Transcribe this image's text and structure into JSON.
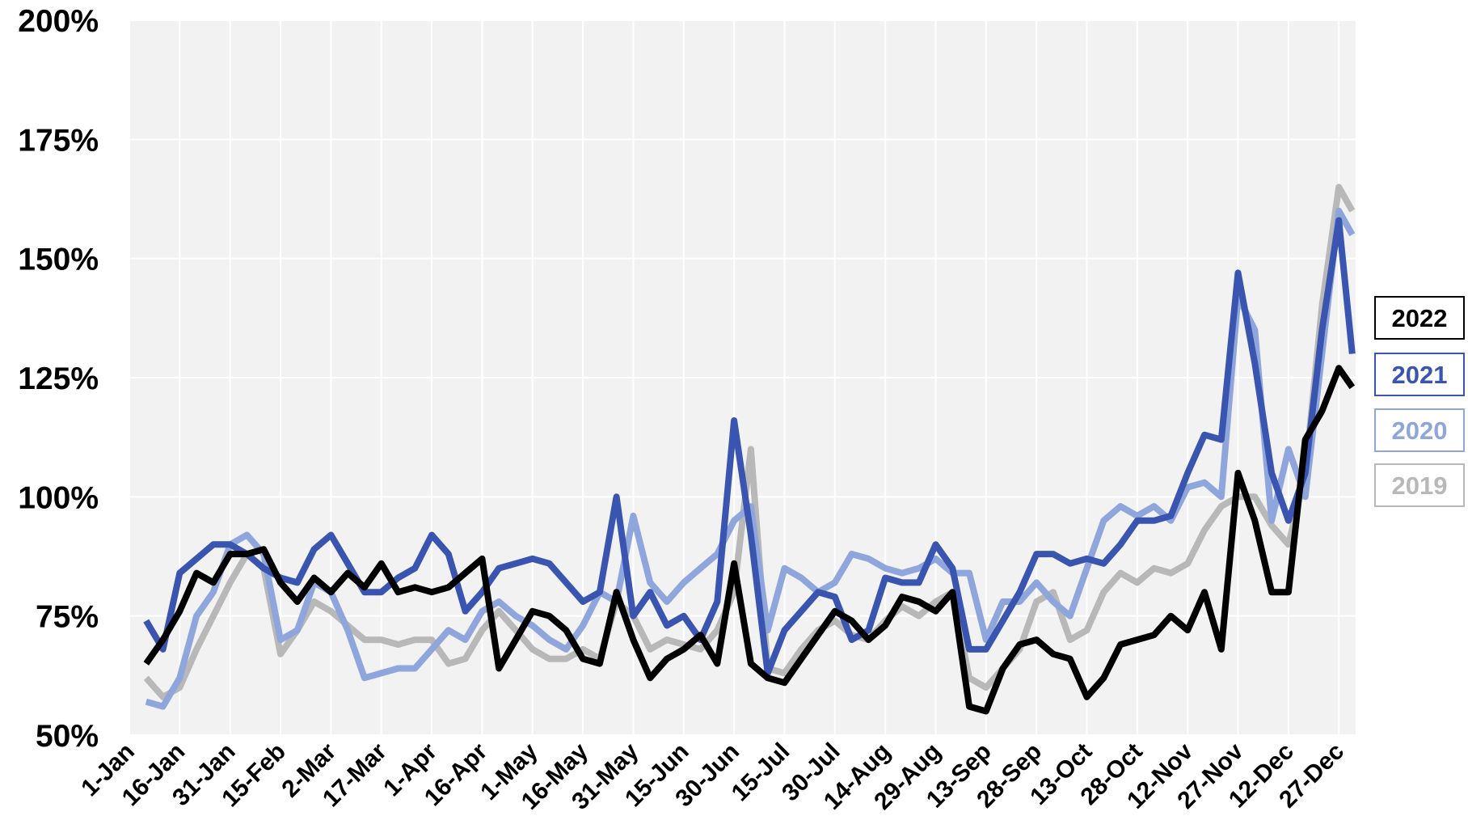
{
  "chart_data": {
    "type": "line",
    "x": [
      6,
      11,
      16,
      21,
      26,
      31,
      36,
      41,
      46,
      51,
      56,
      61,
      66,
      71,
      76,
      81,
      86,
      91,
      96,
      101,
      106,
      111,
      116,
      121,
      126,
      131,
      136,
      141,
      146,
      151,
      156,
      161,
      166,
      171,
      176,
      181,
      186,
      191,
      196,
      201,
      206,
      211,
      216,
      221,
      226,
      231,
      236,
      241,
      246,
      251,
      256,
      261,
      266,
      271,
      276,
      281,
      286,
      291,
      296,
      301,
      306,
      311,
      316,
      321,
      326,
      331,
      336,
      341,
      346,
      351,
      356,
      361,
      365
    ],
    "xlim": [
      1,
      366
    ],
    "xticks": [
      {
        "value": 1,
        "label": "1-Jan"
      },
      {
        "value": 16,
        "label": "16-Jan"
      },
      {
        "value": 31,
        "label": "31-Jan"
      },
      {
        "value": 46,
        "label": "15-Feb"
      },
      {
        "value": 61,
        "label": "2-Mar"
      },
      {
        "value": 76,
        "label": "17-Mar"
      },
      {
        "value": 91,
        "label": "1-Apr"
      },
      {
        "value": 106,
        "label": "16-Apr"
      },
      {
        "value": 121,
        "label": "1-May"
      },
      {
        "value": 136,
        "label": "16-May"
      },
      {
        "value": 151,
        "label": "31-May"
      },
      {
        "value": 166,
        "label": "15-Jun"
      },
      {
        "value": 181,
        "label": "30-Jun"
      },
      {
        "value": 196,
        "label": "15-Jul"
      },
      {
        "value": 211,
        "label": "30-Jul"
      },
      {
        "value": 226,
        "label": "14-Aug"
      },
      {
        "value": 241,
        "label": "29-Aug"
      },
      {
        "value": 256,
        "label": "13-Sep"
      },
      {
        "value": 271,
        "label": "28-Sep"
      },
      {
        "value": 286,
        "label": "13-Oct"
      },
      {
        "value": 301,
        "label": "28-Oct"
      },
      {
        "value": 316,
        "label": "12-Nov"
      },
      {
        "value": 331,
        "label": "27-Nov"
      },
      {
        "value": 346,
        "label": "12-Dec"
      },
      {
        "value": 361,
        "label": "27-Dec"
      }
    ],
    "ylim": [
      50,
      200
    ],
    "yticks": [
      {
        "value": 50,
        "label": "50%"
      },
      {
        "value": 75,
        "label": "75%"
      },
      {
        "value": 100,
        "label": "100%"
      },
      {
        "value": 125,
        "label": "125%"
      },
      {
        "value": 150,
        "label": "150%"
      },
      {
        "value": 175,
        "label": "175%"
      },
      {
        "value": 200,
        "label": "200%"
      }
    ],
    "grid": true,
    "legend": "right",
    "series": [
      {
        "name": "2022",
        "color": "#000000",
        "values": [
          65,
          70,
          76,
          84,
          82,
          88,
          88,
          89,
          82,
          78,
          83,
          80,
          84,
          81,
          86,
          80,
          81,
          80,
          81,
          84,
          87,
          64,
          70,
          76,
          75,
          72,
          66,
          65,
          80,
          70,
          62,
          66,
          68,
          71,
          65,
          86,
          65,
          62,
          61,
          66,
          71,
          76,
          74,
          70,
          73,
          79,
          78,
          76,
          80,
          56,
          55,
          64,
          69,
          70,
          67,
          66,
          58,
          62,
          69,
          70,
          71,
          75,
          72,
          80,
          68,
          105,
          95,
          80,
          80,
          112,
          118,
          127,
          123
        ]
      },
      {
        "name": "2021",
        "color": "#3a55b0",
        "values": [
          74,
          68,
          84,
          87,
          90,
          90,
          88,
          85,
          83,
          82,
          89,
          92,
          86,
          80,
          80,
          83,
          85,
          92,
          88,
          76,
          80,
          85,
          86,
          87,
          86,
          82,
          78,
          80,
          100,
          75,
          80,
          73,
          75,
          70,
          78,
          116,
          92,
          63,
          72,
          76,
          80,
          79,
          70,
          72,
          83,
          82,
          82,
          90,
          85,
          68,
          68,
          74,
          80,
          88,
          88,
          86,
          87,
          86,
          90,
          95,
          95,
          96,
          105,
          113,
          112,
          147,
          128,
          105,
          95,
          105,
          135,
          158,
          130
        ]
      },
      {
        "name": "2020",
        "color": "#8fa6dc",
        "values": [
          57,
          56,
          62,
          75,
          80,
          90,
          92,
          88,
          70,
          72,
          82,
          80,
          72,
          62,
          63,
          64,
          64,
          68,
          72,
          70,
          76,
          78,
          75,
          73,
          70,
          68,
          73,
          80,
          78,
          96,
          82,
          78,
          82,
          85,
          88,
          95,
          98,
          72,
          85,
          83,
          80,
          82,
          88,
          87,
          85,
          84,
          85,
          87,
          84,
          84,
          70,
          78,
          78,
          82,
          78,
          75,
          85,
          95,
          98,
          96,
          98,
          95,
          102,
          103,
          100,
          142,
          135,
          95,
          110,
          100,
          130,
          160,
          155
        ]
      },
      {
        "name": "2019",
        "color": "#b8b8b8",
        "values": [
          62,
          58,
          60,
          68,
          75,
          82,
          88,
          85,
          67,
          72,
          78,
          76,
          73,
          70,
          70,
          69,
          70,
          70,
          65,
          66,
          72,
          76,
          72,
          68,
          66,
          66,
          68,
          66,
          78,
          75,
          68,
          70,
          69,
          68,
          72,
          80,
          110,
          64,
          63,
          68,
          72,
          74,
          71,
          70,
          74,
          77,
          75,
          78,
          80,
          62,
          60,
          64,
          68,
          78,
          80,
          70,
          72,
          80,
          84,
          82,
          85,
          84,
          86,
          93,
          98,
          100,
          100,
          94,
          90,
          105,
          140,
          165,
          160
        ]
      }
    ]
  }
}
